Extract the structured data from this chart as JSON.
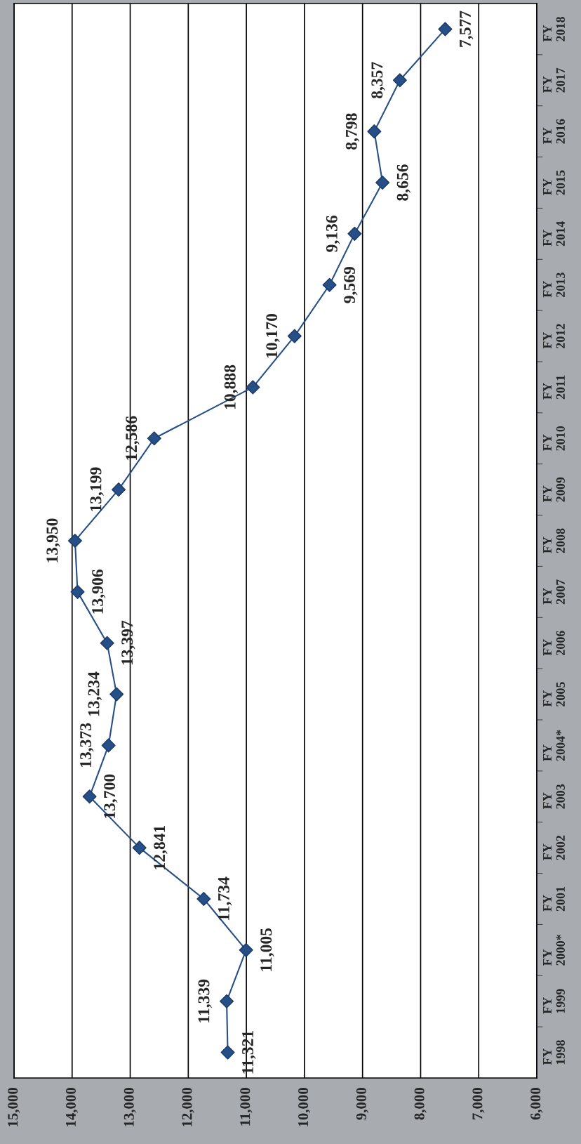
{
  "chart_data": {
    "type": "line",
    "orientation": "horizontal",
    "categories": [
      "FY\n2018",
      "FY\n2017",
      "FY\n2016",
      "FY\n2015",
      "FY\n2014",
      "FY\n2013",
      "FY\n2012",
      "FY\n2011",
      "FY\n2010",
      "FY\n2009",
      "FY\n2008",
      "FY\n2007",
      "FY\n2006",
      "FY\n2005",
      "FY\n2004*",
      "FY\n2003",
      "FY\n2002",
      "FY\n2001",
      "FY\n2000*",
      "FY\n1999",
      "FY\n1998"
    ],
    "series": [
      {
        "color": "#254f86",
        "values": [
          7577,
          8357,
          8798,
          8656,
          9136,
          9569,
          10170,
          10888,
          12586,
          13199,
          13950,
          13906,
          13397,
          13234,
          13373,
          13700,
          12841,
          11734,
          11005,
          11339,
          11321
        ],
        "value_labels": [
          "7,577",
          "8,357",
          "8,798",
          "8,656",
          "9,136",
          "9,569",
          "10,170",
          "10,888",
          "12,586",
          "13,199",
          "13,950",
          "13,906",
          "13,397",
          "13,234",
          "13,373",
          "13,700",
          "12,841",
          "11,734",
          "11,005",
          "11,339",
          "11,321"
        ]
      }
    ],
    "xlim": [
      15000,
      6000
    ],
    "xticks": [
      {
        "value": 15000,
        "label": "15,000"
      },
      {
        "value": 14000,
        "label": "14,000"
      },
      {
        "value": 13000,
        "label": "13,000"
      },
      {
        "value": 12000,
        "label": "12,000"
      },
      {
        "value": 11000,
        "label": "11,000"
      },
      {
        "value": 10000,
        "label": "10,000"
      },
      {
        "value": 9000,
        "label": "9,000"
      },
      {
        "value": 8000,
        "label": "8,000"
      },
      {
        "value": 7000,
        "label": "7,000"
      },
      {
        "value": 6000,
        "label": "6,000"
      }
    ],
    "grid": "x",
    "marker": "diamond"
  }
}
